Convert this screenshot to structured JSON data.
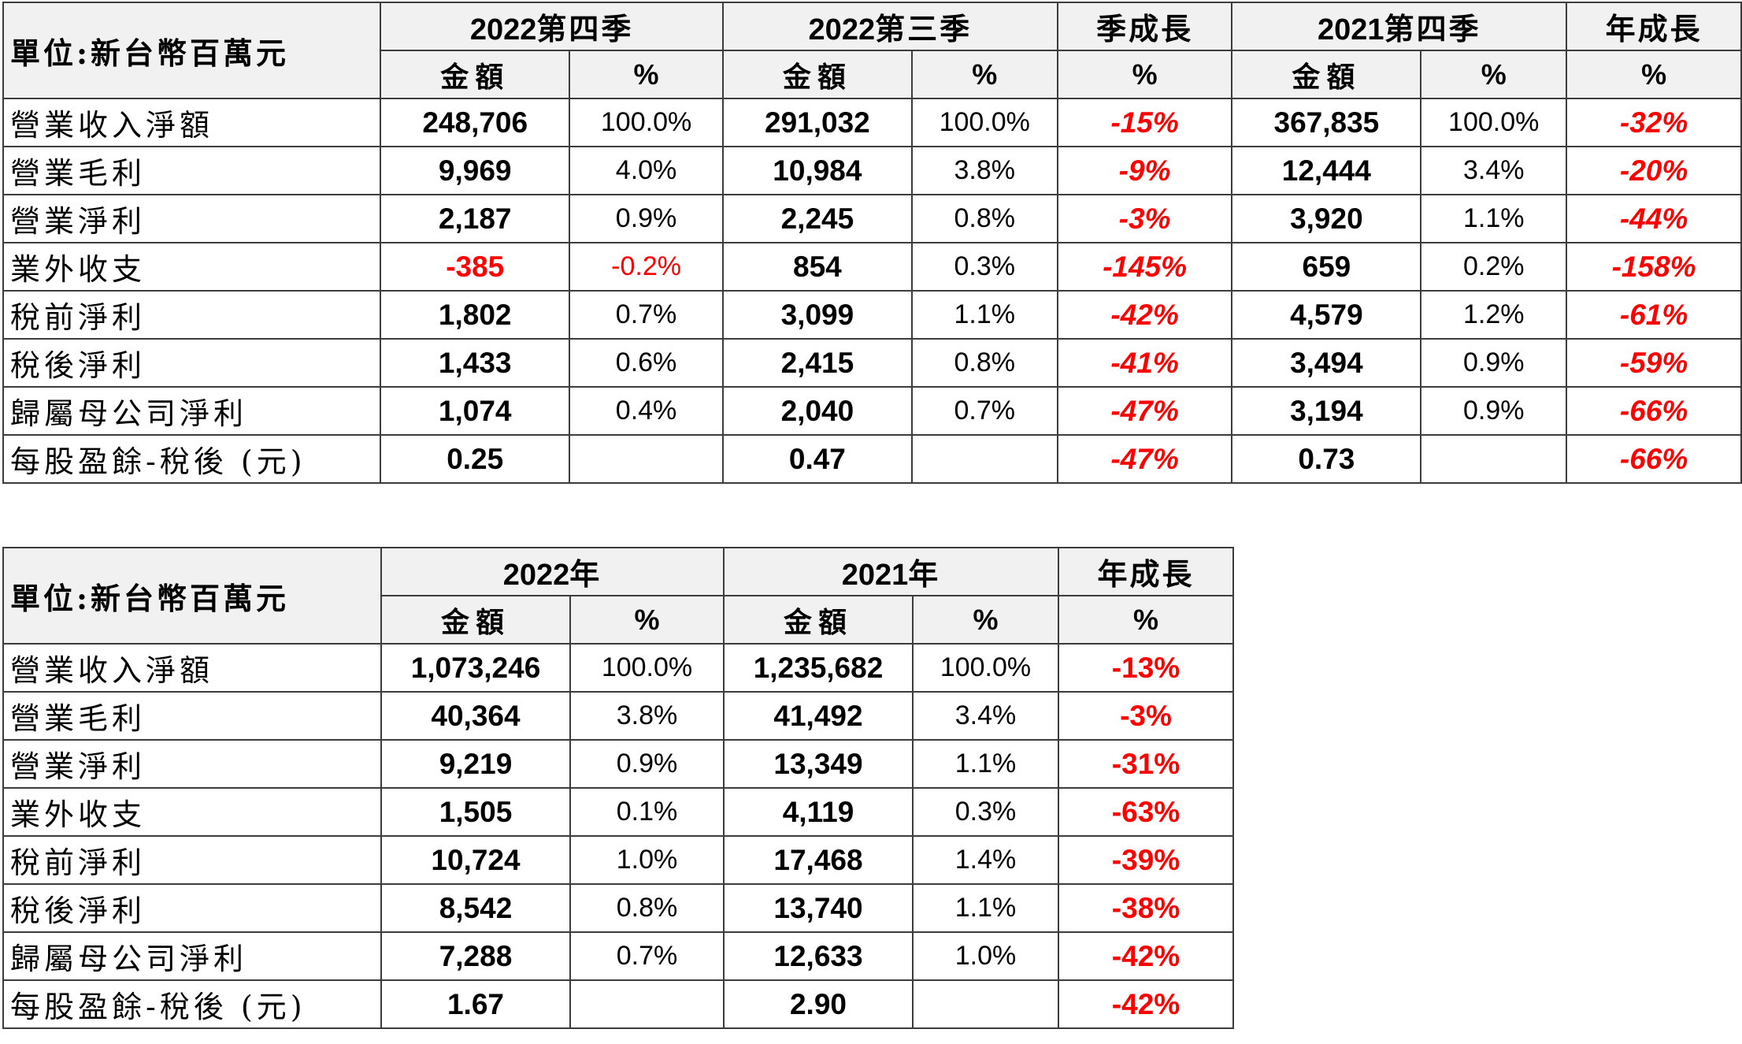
{
  "unit_label": "單位:新台幣百萬元",
  "quarterly": {
    "groups": [
      {
        "year": "2022",
        "suffix": "第四季"
      },
      {
        "year": "2022",
        "suffix": "第三季"
      },
      {
        "year": "",
        "suffix": "季成長"
      },
      {
        "year": "2021",
        "suffix": "第四季"
      },
      {
        "year": "",
        "suffix": "年成長"
      }
    ],
    "subheaders": [
      "金額",
      "%",
      "金額",
      "%",
      "%",
      "金額",
      "%",
      "%"
    ],
    "rows": [
      {
        "label": "營業收入淨額",
        "q4_2022": "248,706",
        "q4_2022_pct": "100.0%",
        "q3_2022": "291,032",
        "q3_2022_pct": "100.0%",
        "qoq": "-15%",
        "q4_2021": "367,835",
        "q4_2021_pct": "100.0%",
        "yoy": "-32%"
      },
      {
        "label": "營業毛利",
        "q4_2022": "9,969",
        "q4_2022_pct": "4.0%",
        "q3_2022": "10,984",
        "q3_2022_pct": "3.8%",
        "qoq": "-9%",
        "q4_2021": "12,444",
        "q4_2021_pct": "3.4%",
        "yoy": "-20%"
      },
      {
        "label": "營業淨利",
        "q4_2022": "2,187",
        "q4_2022_pct": "0.9%",
        "q3_2022": "2,245",
        "q3_2022_pct": "0.8%",
        "qoq": "-3%",
        "q4_2021": "3,920",
        "q4_2021_pct": "1.1%",
        "yoy": "-44%"
      },
      {
        "label": "業外收支",
        "q4_2022": "-385",
        "q4_2022_pct": "-0.2%",
        "q3_2022": "854",
        "q3_2022_pct": "0.3%",
        "qoq": "-145%",
        "q4_2021": "659",
        "q4_2021_pct": "0.2%",
        "yoy": "-158%"
      },
      {
        "label": "稅前淨利",
        "q4_2022": "1,802",
        "q4_2022_pct": "0.7%",
        "q3_2022": "3,099",
        "q3_2022_pct": "1.1%",
        "qoq": "-42%",
        "q4_2021": "4,579",
        "q4_2021_pct": "1.2%",
        "yoy": "-61%"
      },
      {
        "label": "稅後淨利",
        "q4_2022": "1,433",
        "q4_2022_pct": "0.6%",
        "q3_2022": "2,415",
        "q3_2022_pct": "0.8%",
        "qoq": "-41%",
        "q4_2021": "3,494",
        "q4_2021_pct": "0.9%",
        "yoy": "-59%"
      },
      {
        "label": "歸屬母公司淨利",
        "q4_2022": "1,074",
        "q4_2022_pct": "0.4%",
        "q3_2022": "2,040",
        "q3_2022_pct": "0.7%",
        "qoq": "-47%",
        "q4_2021": "3,194",
        "q4_2021_pct": "0.9%",
        "yoy": "-66%"
      },
      {
        "label": "每股盈餘-稅後 (元)",
        "q4_2022": "0.25",
        "q4_2022_pct": "",
        "q3_2022": "0.47",
        "q3_2022_pct": "",
        "qoq": "-47%",
        "q4_2021": "0.73",
        "q4_2021_pct": "",
        "yoy": "-66%"
      }
    ]
  },
  "annual": {
    "groups": [
      {
        "year": "2022",
        "suffix": "年"
      },
      {
        "year": "2021",
        "suffix": "年"
      },
      {
        "year": "",
        "suffix": "年成長"
      }
    ],
    "subheaders": [
      "金額",
      "%",
      "金額",
      "%",
      "%"
    ],
    "rows": [
      {
        "label": "營業收入淨額",
        "y2022": "1,073,246",
        "y2022_pct": "100.0%",
        "y2021": "1,235,682",
        "y2021_pct": "100.0%",
        "yoy": "-13%"
      },
      {
        "label": "營業毛利",
        "y2022": "40,364",
        "y2022_pct": "3.8%",
        "y2021": "41,492",
        "y2021_pct": "3.4%",
        "yoy": "-3%"
      },
      {
        "label": "營業淨利",
        "y2022": "9,219",
        "y2022_pct": "0.9%",
        "y2021": "13,349",
        "y2021_pct": "1.1%",
        "yoy": "-31%"
      },
      {
        "label": "業外收支",
        "y2022": "1,505",
        "y2022_pct": "0.1%",
        "y2021": "4,119",
        "y2021_pct": "0.3%",
        "yoy": "-63%"
      },
      {
        "label": "稅前淨利",
        "y2022": "10,724",
        "y2022_pct": "1.0%",
        "y2021": "17,468",
        "y2021_pct": "1.4%",
        "yoy": "-39%"
      },
      {
        "label": "稅後淨利",
        "y2022": "8,542",
        "y2022_pct": "0.8%",
        "y2021": "13,740",
        "y2021_pct": "1.1%",
        "yoy": "-38%"
      },
      {
        "label": "歸屬母公司淨利",
        "y2022": "7,288",
        "y2022_pct": "0.7%",
        "y2021": "12,633",
        "y2021_pct": "1.0%",
        "yoy": "-42%"
      },
      {
        "label": "每股盈餘-稅後 (元)",
        "y2022": "1.67",
        "y2022_pct": "",
        "y2021": "2.90",
        "y2021_pct": "",
        "yoy": "-42%"
      }
    ]
  },
  "colors": {
    "negative": "#ff0000",
    "header_bg": "#f1f1f1",
    "border": "#3c3c3c"
  }
}
